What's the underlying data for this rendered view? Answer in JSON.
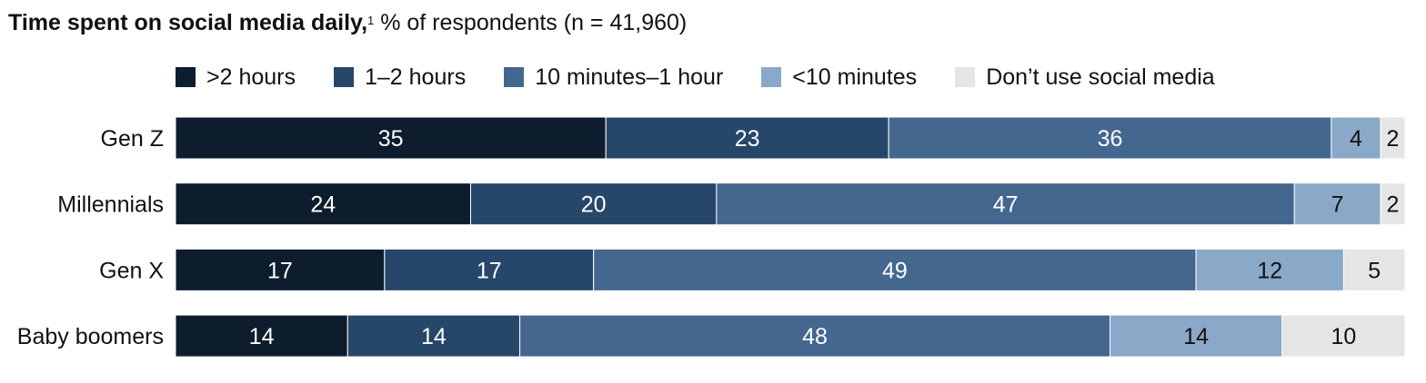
{
  "title": {
    "bold": "Time spent on social media daily,",
    "footnote": "1",
    "rest": " % of respondents (n = 41,960)"
  },
  "chart_data": {
    "type": "bar",
    "orientation": "horizontal",
    "stacked": true,
    "title": "Time spent on social media daily, % of respondents (n = 41,960)",
    "categories": [
      "Gen Z",
      "Millennials",
      "Gen X",
      "Baby boomers"
    ],
    "series": [
      {
        "name": ">2 hours",
        "color": "#0d1d2e",
        "label_color": "#ffffff",
        "values": [
          35,
          24,
          17,
          14
        ]
      },
      {
        "name": "1–2 hours",
        "color": "#26476a",
        "label_color": "#ffffff",
        "values": [
          23,
          20,
          17,
          14
        ]
      },
      {
        "name": "10 minutes–1 hour",
        "color": "#44678f",
        "label_color": "#ffffff",
        "values": [
          36,
          47,
          49,
          48
        ]
      },
      {
        "name": "<10 minutes",
        "color": "#8aa8c8",
        "label_color": "#111111",
        "values": [
          4,
          7,
          12,
          14
        ]
      },
      {
        "name": "Don’t use social media",
        "color": "#e5e5e5",
        "label_color": "#111111",
        "values": [
          2,
          2,
          5,
          10
        ]
      }
    ],
    "legend_position": "top",
    "grid": false
  }
}
